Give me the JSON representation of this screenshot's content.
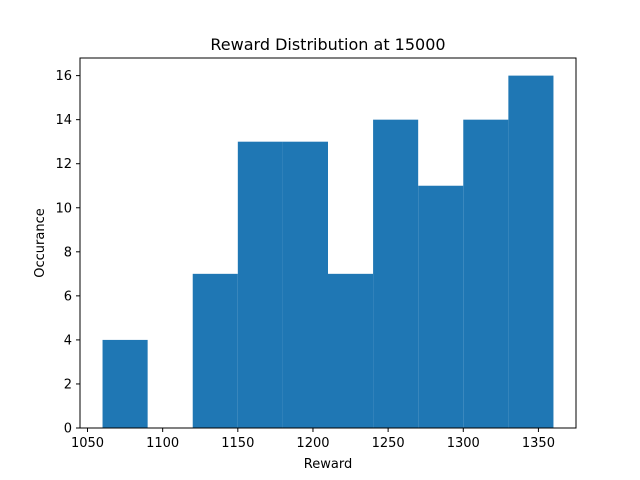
{
  "chart_data": {
    "type": "bar",
    "title": "Reward Distribution at 15000",
    "xlabel": "Reward",
    "ylabel": "Occurance",
    "bins": [
      {
        "x0": 1060,
        "x1": 1090,
        "value": 4
      },
      {
        "x0": 1090,
        "x1": 1120,
        "value": 0
      },
      {
        "x0": 1120,
        "x1": 1150,
        "value": 7
      },
      {
        "x0": 1150,
        "x1": 1180,
        "value": 13
      },
      {
        "x0": 1180,
        "x1": 1210,
        "value": 13
      },
      {
        "x0": 1210,
        "x1": 1240,
        "value": 7
      },
      {
        "x0": 1240,
        "x1": 1270,
        "value": 14
      },
      {
        "x0": 1270,
        "x1": 1300,
        "value": 11
      },
      {
        "x0": 1300,
        "x1": 1330,
        "value": 14
      },
      {
        "x0": 1330,
        "x1": 1360,
        "value": 16
      }
    ],
    "xlim": [
      1045,
      1375
    ],
    "ylim": [
      0,
      16.8
    ],
    "xticks": [
      1050,
      1100,
      1150,
      1200,
      1250,
      1300,
      1350
    ],
    "yticks": [
      0,
      2,
      4,
      6,
      8,
      10,
      12,
      14,
      16
    ],
    "bar_color": "#1f77b4",
    "grid": false
  }
}
